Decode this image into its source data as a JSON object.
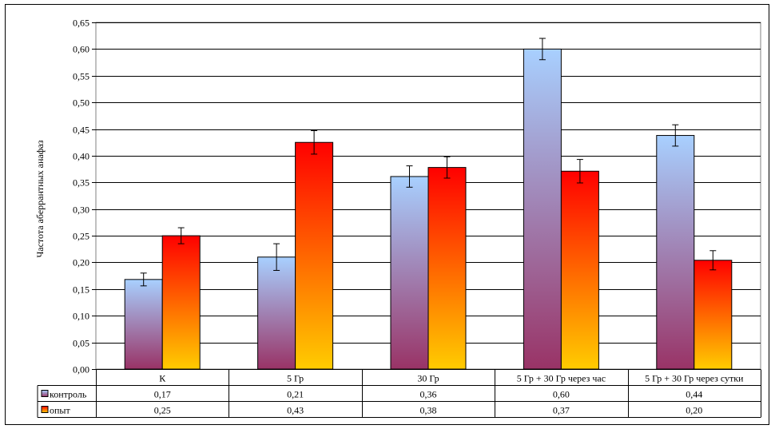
{
  "chart_data": {
    "type": "bar",
    "title": "",
    "xlabel": "",
    "ylabel": "Частота аберрантных анафаз",
    "ylim": [
      0,
      0.65
    ],
    "yticks": [
      "0,00",
      "0,05",
      "0,10",
      "0,15",
      "0,20",
      "0,25",
      "0,30",
      "0,35",
      "0,40",
      "0,45",
      "0,50",
      "0,55",
      "0,60",
      "0,65"
    ],
    "categories": [
      "К",
      "5 Гр",
      "30 Гр",
      "5 Гр + 30 Гр через час",
      "5 Гр + 30 Гр через сутки"
    ],
    "series": [
      {
        "name": "контроль",
        "values": [
          0.168,
          0.21,
          0.361,
          0.6,
          0.438
        ],
        "errors": [
          0.012,
          0.025,
          0.02,
          0.02,
          0.02
        ],
        "table_values": [
          "0,17",
          "0,21",
          "0,36",
          "0,60",
          "0,44"
        ],
        "color_top": "#a8d0ff",
        "color_bottom": "#993366"
      },
      {
        "name": "опыт",
        "values": [
          0.25,
          0.425,
          0.378,
          0.371,
          0.204
        ],
        "errors": [
          0.015,
          0.022,
          0.02,
          0.022,
          0.018
        ],
        "table_values": [
          "0,25",
          "0,43",
          "0,38",
          "0,37",
          "0,20"
        ],
        "color_top": "#ff0000",
        "color_bottom": "#ffcc00"
      }
    ],
    "grid": true,
    "legend": "data-table"
  }
}
